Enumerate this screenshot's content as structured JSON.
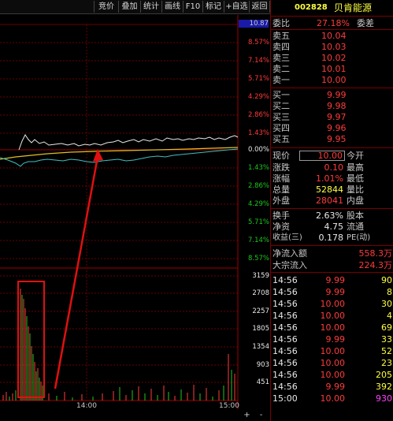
{
  "toolbar": {
    "buttons": [
      "竞价",
      "叠加",
      "统计",
      "画线",
      "F10",
      "标记",
      "+自选",
      "返回"
    ]
  },
  "chart": {
    "price_labels": [
      {
        "text": "10.87",
        "cls": "white",
        "highlight": true
      },
      {
        "text": "8.57%",
        "cls": "red"
      },
      {
        "text": "7.14%",
        "cls": "red"
      },
      {
        "text": "5.71%",
        "cls": "red"
      },
      {
        "text": "4.29%",
        "cls": "red"
      },
      {
        "text": "2.86%",
        "cls": "red"
      },
      {
        "text": "1.43%",
        "cls": "red"
      },
      {
        "text": "0.00%",
        "cls": "white"
      },
      {
        "text": "1.43%",
        "cls": "green"
      },
      {
        "text": "2.86%",
        "cls": "green"
      },
      {
        "text": "4.29%",
        "cls": "green"
      },
      {
        "text": "5.71%",
        "cls": "green"
      },
      {
        "text": "7.14%",
        "cls": "green"
      },
      {
        "text": "8.57%",
        "cls": "green"
      }
    ],
    "volume_labels": [
      "3159",
      "2708",
      "2257",
      "1805",
      "1354",
      "903",
      "451"
    ],
    "time_labels": [
      "14:00",
      "15:00"
    ],
    "scroll_buttons": [
      "+",
      "-"
    ]
  },
  "panel": {
    "header": {
      "code": "002828",
      "name": "贝肯能源"
    },
    "committee": {
      "label": "委比",
      "ratio": "27.18%",
      "diff_label": "委差"
    },
    "asks": [
      {
        "label": "卖五",
        "price": "10.04"
      },
      {
        "label": "卖四",
        "price": "10.03"
      },
      {
        "label": "卖三",
        "price": "10.02"
      },
      {
        "label": "卖二",
        "price": "10.01"
      },
      {
        "label": "卖一",
        "price": "10.00"
      }
    ],
    "bids": [
      {
        "label": "买一",
        "price": "9.99"
      },
      {
        "label": "买二",
        "price": "9.98"
      },
      {
        "label": "买三",
        "price": "9.97"
      },
      {
        "label": "买四",
        "price": "9.96"
      },
      {
        "label": "买五",
        "price": "9.95"
      }
    ],
    "quote": [
      {
        "label": "现价",
        "value": "10.00",
        "label2": "今开",
        "boxed": true
      },
      {
        "label": "涨跌",
        "value": "0.10",
        "label2": "最高"
      },
      {
        "label": "涨幅",
        "value": "1.01%",
        "label2": "最低"
      },
      {
        "label": "总量",
        "value": "52844",
        "label2": "量比"
      },
      {
        "label": "外盘",
        "value": "28041",
        "label2": "内盘"
      }
    ],
    "stats": [
      {
        "label": "换手",
        "value": "2.63%",
        "label2": "股本"
      },
      {
        "label": "净资",
        "value": "4.75",
        "label2": "流通"
      },
      {
        "label": "收益(三)",
        "value": "0.178",
        "label2": "PE(动)"
      }
    ],
    "flows": [
      {
        "label": "净流入额",
        "value": "558.3万"
      },
      {
        "label": "大宗流入",
        "value": "224.3万"
      }
    ],
    "ticks": [
      {
        "time": "14:56",
        "price": "9.99",
        "vol": "90"
      },
      {
        "time": "14:56",
        "price": "9.99",
        "vol": "8"
      },
      {
        "time": "14:56",
        "price": "10.00",
        "vol": "30"
      },
      {
        "time": "14:56",
        "price": "10.00",
        "vol": "4"
      },
      {
        "time": "14:56",
        "price": "10.00",
        "vol": "69"
      },
      {
        "time": "14:56",
        "price": "9.99",
        "vol": "33"
      },
      {
        "time": "14:56",
        "price": "10.00",
        "vol": "52"
      },
      {
        "time": "14:56",
        "price": "10.00",
        "vol": "23"
      },
      {
        "time": "14:56",
        "price": "10.00",
        "vol": "205"
      },
      {
        "time": "14:56",
        "price": "9.99",
        "vol": "392"
      },
      {
        "time": "15:00",
        "price": "10.00",
        "vol": "930"
      }
    ]
  }
}
